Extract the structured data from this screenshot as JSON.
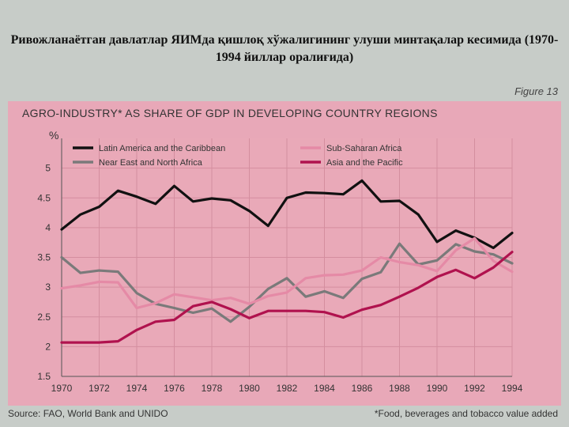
{
  "slide_title": "Ривожланаётган давлатлар ЯИМда қишлоқ хўжалигининг улуши минтақалар кесимида (1970-1994 йиллар оралиғида)",
  "figure_label": "Figure 13",
  "source": "Source: FAO, World Bank and UNIDO",
  "footnote": "*Food, beverages and tobacco value added",
  "chart_data": {
    "type": "line",
    "title": "AGRO-INDUSTRY* AS SHARE OF GDP IN DEVELOPING COUNTRY REGIONS",
    "ylabel": "%",
    "xlabel": "",
    "ylim": [
      1.5,
      5.5
    ],
    "yticks": [
      1.5,
      2,
      2.5,
      3,
      3.5,
      4,
      4.5,
      5
    ],
    "xticks": [
      1970,
      1972,
      1974,
      1976,
      1978,
      1980,
      1982,
      1984,
      1986,
      1988,
      1990,
      1992,
      1994
    ],
    "x": [
      1970,
      1971,
      1972,
      1973,
      1974,
      1975,
      1976,
      1977,
      1978,
      1979,
      1980,
      1981,
      1982,
      1983,
      1984,
      1985,
      1986,
      1987,
      1988,
      1989,
      1990,
      1991,
      1992,
      1993,
      1994
    ],
    "grid": true,
    "series": [
      {
        "name": "Latin America and the Caribbean",
        "color": "#111111",
        "values": [
          3.97,
          4.22,
          4.35,
          4.62,
          4.52,
          4.4,
          4.7,
          4.44,
          4.49,
          4.46,
          4.28,
          4.03,
          4.5,
          4.59,
          4.58,
          4.56,
          4.79,
          4.44,
          4.45,
          4.22,
          3.76,
          3.95,
          3.83,
          3.66,
          3.91
        ]
      },
      {
        "name": "Near East and North Africa",
        "color": "#7a7a7a",
        "values": [
          3.5,
          3.24,
          3.28,
          3.26,
          2.9,
          2.72,
          2.65,
          2.57,
          2.64,
          2.42,
          2.67,
          2.97,
          3.15,
          2.84,
          2.93,
          2.82,
          3.14,
          3.25,
          3.73,
          3.38,
          3.45,
          3.72,
          3.6,
          3.55,
          3.4
        ]
      },
      {
        "name": "Sub-Saharan Africa",
        "color": "#e58aa6",
        "values": [
          2.98,
          3.03,
          3.09,
          3.08,
          2.65,
          2.73,
          2.88,
          2.83,
          2.78,
          2.82,
          2.72,
          2.85,
          2.91,
          3.15,
          3.2,
          3.21,
          3.28,
          3.5,
          3.42,
          3.37,
          3.27,
          3.62,
          3.82,
          3.44,
          3.26
        ]
      },
      {
        "name": "Asia and the Pacific",
        "color": "#b0124e",
        "values": [
          2.07,
          2.07,
          2.07,
          2.09,
          2.28,
          2.42,
          2.45,
          2.68,
          2.75,
          2.63,
          2.48,
          2.6,
          2.6,
          2.6,
          2.58,
          2.49,
          2.62,
          2.7,
          2.84,
          2.99,
          3.17,
          3.29,
          3.15,
          3.33,
          3.59
        ]
      }
    ]
  }
}
